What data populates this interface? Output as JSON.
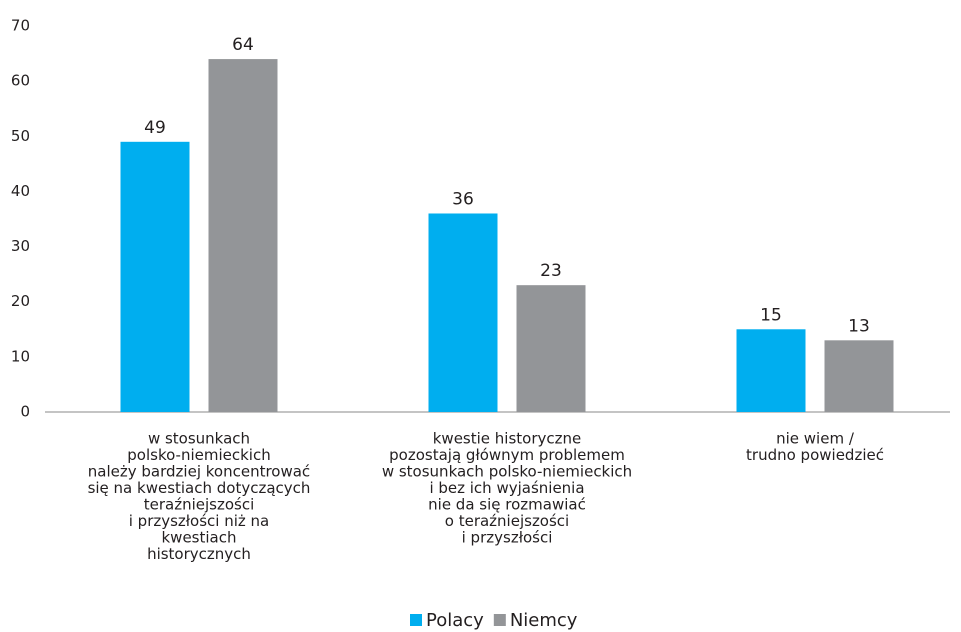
{
  "chart_data": {
    "type": "bar",
    "categories": [
      [
        "w stosunkach",
        "polsko-niemieckich",
        "należy bardziej koncentrować",
        "się na kwestiach dotyczących",
        "teraźniejszości",
        "i przyszłości niż na",
        "kwestiach",
        "historycznych"
      ],
      [
        "kwestie historyczne",
        "pozostają głównym problemem",
        "w stosunkach polsko-niemieckich",
        "i bez ich wyjaśnienia",
        "nie da się rozmawiać",
        "o teraźniejszości",
        "i przyszłości"
      ],
      [
        "nie wiem /",
        "trudno powiedzieć"
      ]
    ],
    "series": [
      {
        "name": "Polacy",
        "color": "#00aeef",
        "values": [
          49,
          36,
          15
        ]
      },
      {
        "name": "Niemcy",
        "color": "#939598",
        "values": [
          64,
          23,
          13
        ]
      }
    ],
    "ylim": [
      0,
      70
    ],
    "yticks": [
      0,
      10,
      20,
      30,
      40,
      50,
      60,
      70
    ],
    "grid": false,
    "legend": "bottom"
  }
}
